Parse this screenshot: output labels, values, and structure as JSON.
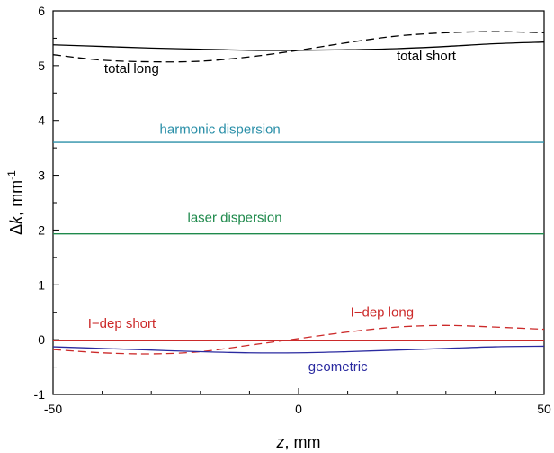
{
  "chart_data": {
    "type": "line",
    "xlabel": {
      "italic": "z",
      "rest": ", mm"
    },
    "ylabel": {
      "prefix": "Δ",
      "italic": "k",
      "rest": ", mm",
      "sup": "-1"
    },
    "xlim": [
      -50,
      50
    ],
    "ylim": [
      -1,
      6
    ],
    "xticks": [
      -50,
      0,
      50
    ],
    "yticks": [
      -1,
      0,
      1,
      2,
      3,
      4,
      5,
      6
    ],
    "series": [
      {
        "id": "total-short",
        "color": "#000000",
        "dash": "solid",
        "x": [
          -50,
          -40,
          -30,
          -20,
          -10,
          0,
          10,
          20,
          30,
          40,
          50
        ],
        "y": [
          5.38,
          5.35,
          5.32,
          5.3,
          5.28,
          5.28,
          5.29,
          5.31,
          5.35,
          5.4,
          5.43
        ]
      },
      {
        "id": "total-long",
        "color": "#000000",
        "dash": "dashed",
        "x": [
          -50,
          -40,
          -30,
          -20,
          -10,
          0,
          10,
          20,
          30,
          40,
          50
        ],
        "y": [
          5.2,
          5.1,
          5.07,
          5.08,
          5.16,
          5.28,
          5.42,
          5.54,
          5.6,
          5.62,
          5.6
        ]
      },
      {
        "id": "harmonic-dispersion",
        "color": "#2a8fa8",
        "dash": "solid",
        "x": [
          -50,
          50
        ],
        "y": [
          3.6,
          3.6
        ]
      },
      {
        "id": "laser-dispersion",
        "color": "#1f8a4c",
        "dash": "solid",
        "x": [
          -50,
          50
        ],
        "y": [
          1.93,
          1.93
        ]
      },
      {
        "id": "i-dep-short",
        "color": "#cc2a2a",
        "dash": "solid",
        "x": [
          -50,
          50
        ],
        "y": [
          -0.02,
          -0.02
        ]
      },
      {
        "id": "i-dep-long",
        "color": "#cc2a2a",
        "dash": "dashed",
        "x": [
          -50,
          -40,
          -30,
          -20,
          -10,
          0,
          10,
          20,
          30,
          40,
          50
        ],
        "y": [
          -0.18,
          -0.24,
          -0.26,
          -0.22,
          -0.1,
          0.02,
          0.14,
          0.23,
          0.26,
          0.23,
          0.19
        ]
      },
      {
        "id": "geometric",
        "color": "#2a2aa0",
        "dash": "solid",
        "x": [
          -50,
          -40,
          -30,
          -20,
          -10,
          0,
          10,
          20,
          30,
          40,
          50
        ],
        "y": [
          -0.13,
          -0.16,
          -0.19,
          -0.22,
          -0.24,
          -0.24,
          -0.22,
          -0.19,
          -0.16,
          -0.13,
          -0.12
        ]
      }
    ],
    "annotations": [
      {
        "id": "ann-total-short",
        "text": "total short",
        "x": 26,
        "y": 5.1,
        "color": "#000000"
      },
      {
        "id": "ann-total-long",
        "text": "total long",
        "x": -34,
        "y": 4.87,
        "color": "#000000"
      },
      {
        "id": "ann-harmonic",
        "text": "harmonic dispersion",
        "x": -16,
        "y": 3.76,
        "color": "#2a8fa8"
      },
      {
        "id": "ann-laser",
        "text": "laser dispersion",
        "x": -13,
        "y": 2.15,
        "color": "#1f8a4c"
      },
      {
        "id": "ann-idep-short",
        "text": "I−dep short",
        "x": -36,
        "y": 0.22,
        "color": "#cc2a2a"
      },
      {
        "id": "ann-idep-long",
        "text": "I−dep long",
        "x": 17,
        "y": 0.42,
        "color": "#cc2a2a"
      },
      {
        "id": "ann-geometric",
        "text": "geometric",
        "x": 8,
        "y": -0.57,
        "color": "#2a2aa0"
      }
    ]
  }
}
